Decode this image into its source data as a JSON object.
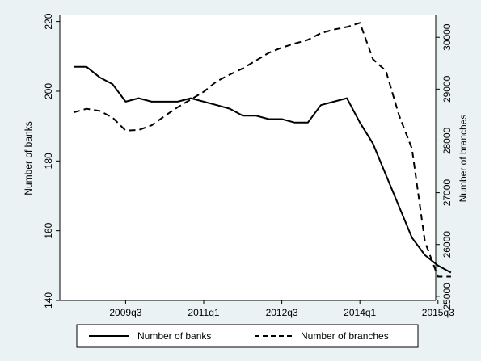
{
  "chart_data": {
    "type": "line",
    "title": "",
    "xlabel": "",
    "ylabel_left": "Number of banks",
    "ylabel_right": "Number of branches",
    "x": [
      "2008q3",
      "2008q4",
      "2009q1",
      "2009q2",
      "2009q3",
      "2009q4",
      "2010q1",
      "2010q2",
      "2010q3",
      "2010q4",
      "2011q1",
      "2011q2",
      "2011q3",
      "2011q4",
      "2012q1",
      "2012q2",
      "2012q3",
      "2012q4",
      "2013q1",
      "2013q2",
      "2013q3",
      "2013q4",
      "2014q1",
      "2014q2",
      "2014q3",
      "2014q4",
      "2015q1",
      "2015q2",
      "2015q3",
      "2015q4"
    ],
    "x_ticks": [
      "2009q3",
      "2011q1",
      "2012q3",
      "2014q1",
      "2015q3"
    ],
    "y_left_ticks": [
      "140",
      "160",
      "180",
      "200",
      "220"
    ],
    "y_left_lim": [
      140,
      222
    ],
    "y_right_ticks": [
      "25000",
      "26000",
      "27000",
      "28000",
      "29000",
      "30000"
    ],
    "y_right_lim": [
      24920,
      30440
    ],
    "grid": "horizontal, left axis",
    "legend_position": "bottom",
    "series": [
      {
        "name": "Number of banks",
        "axis": "left",
        "style": "solid",
        "color": "#000000",
        "values": [
          207,
          207,
          204,
          202,
          197,
          198,
          197,
          197,
          197,
          198,
          197,
          196,
          195,
          193,
          193,
          192,
          192,
          191,
          191,
          196,
          197,
          198,
          191,
          185,
          176,
          167,
          158,
          153,
          150,
          148
        ]
      },
      {
        "name": "Number of branches",
        "axis": "right",
        "style": "dashed",
        "color": "#000000",
        "values": [
          28550,
          28620,
          28580,
          28450,
          28200,
          28210,
          28300,
          28480,
          28650,
          28800,
          28950,
          29150,
          29280,
          29400,
          29550,
          29700,
          29800,
          29880,
          29950,
          30080,
          30150,
          30200,
          30280,
          29580,
          29350,
          28500,
          27850,
          26050,
          25380,
          25380
        ]
      }
    ]
  }
}
